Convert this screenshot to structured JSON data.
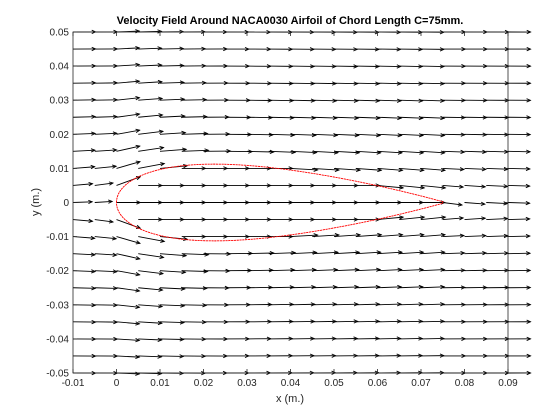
{
  "chart_data": {
    "type": "quiver",
    "title": "Velocity Field Around NACA0030 Airfoil of Chord Length C=75mm.",
    "xlabel": "x (m.)",
    "ylabel": "y (m.)",
    "xlim": [
      -0.01,
      0.09
    ],
    "ylim": [
      -0.05,
      0.05
    ],
    "xticks": [
      -0.01,
      0,
      0.01,
      0.02,
      0.03,
      0.04,
      0.05,
      0.06,
      0.07,
      0.08,
      0.09
    ],
    "xtick_labels": [
      "-0.01",
      "0",
      "0.01",
      "0.02",
      "0.03",
      "0.04",
      "0.05",
      "0.06",
      "0.07",
      "0.08",
      "0.09"
    ],
    "yticks": [
      -0.05,
      -0.04,
      -0.03,
      -0.02,
      -0.01,
      0,
      0.01,
      0.02,
      0.03,
      0.04,
      0.05
    ],
    "ytick_labels": [
      "-0.05",
      "-0.04",
      "-0.03",
      "-0.02",
      "-0.01",
      "0",
      "0.01",
      "0.02",
      "0.03",
      "0.04",
      "0.05"
    ],
    "grid": false,
    "field": {
      "x_start": -0.01,
      "x_step": 0.005,
      "x_count": 21,
      "y_start": -0.05,
      "y_step": 0.005,
      "y_count": 21,
      "free_stream_arrow_dx": 0.0052,
      "chord": 0.075,
      "thickness_ratio": 0.3
    },
    "airfoil": {
      "name": "NACA0030",
      "chord_m": 0.075,
      "leading_edge_x": 0,
      "trailing_edge_x": 0.075,
      "color": "#ff0000"
    },
    "colors": {
      "arrows": "#000000",
      "airfoil": "#ff0000",
      "axes": "#262626"
    }
  }
}
